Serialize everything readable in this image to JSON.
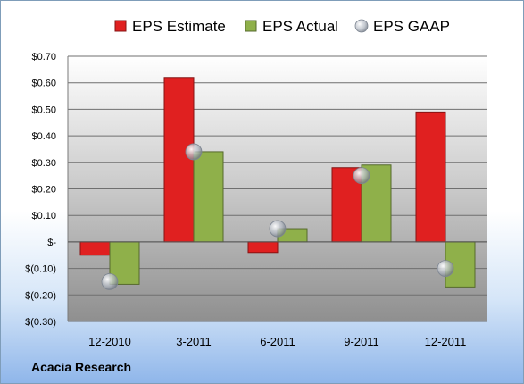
{
  "chart_data": {
    "type": "bar",
    "title": "",
    "xlabel": "",
    "ylabel": "",
    "categories": [
      "12-2010",
      "3-2011",
      "6-2011",
      "9-2011",
      "12-2011"
    ],
    "series": [
      {
        "name": "EPS Estimate",
        "kind": "bar",
        "color": "#e02020",
        "values": [
          -0.05,
          0.62,
          -0.04,
          0.28,
          0.49
        ]
      },
      {
        "name": "EPS Actual",
        "kind": "bar",
        "color": "#8fb04a",
        "values": [
          -0.16,
          0.34,
          0.05,
          0.29,
          -0.17
        ]
      },
      {
        "name": "EPS GAAP",
        "kind": "marker",
        "color": "#9aa3b0",
        "values": [
          -0.15,
          0.34,
          0.05,
          0.25,
          -0.1
        ]
      }
    ],
    "ylim": [
      -0.3,
      0.7
    ],
    "yticks": [
      -0.3,
      -0.2,
      -0.1,
      0,
      0.1,
      0.2,
      0.3,
      0.4,
      0.5,
      0.6,
      0.7
    ],
    "ytick_labels": [
      "$(0.30)",
      "$(0.20)",
      "$(0.10)",
      "$-",
      "$0.10",
      "$0.20",
      "$0.30",
      "$0.40",
      "$0.50",
      "$0.60",
      "$0.70"
    ],
    "grid": true,
    "legend_position": "top"
  },
  "footer": {
    "company": "Acacia Research"
  }
}
